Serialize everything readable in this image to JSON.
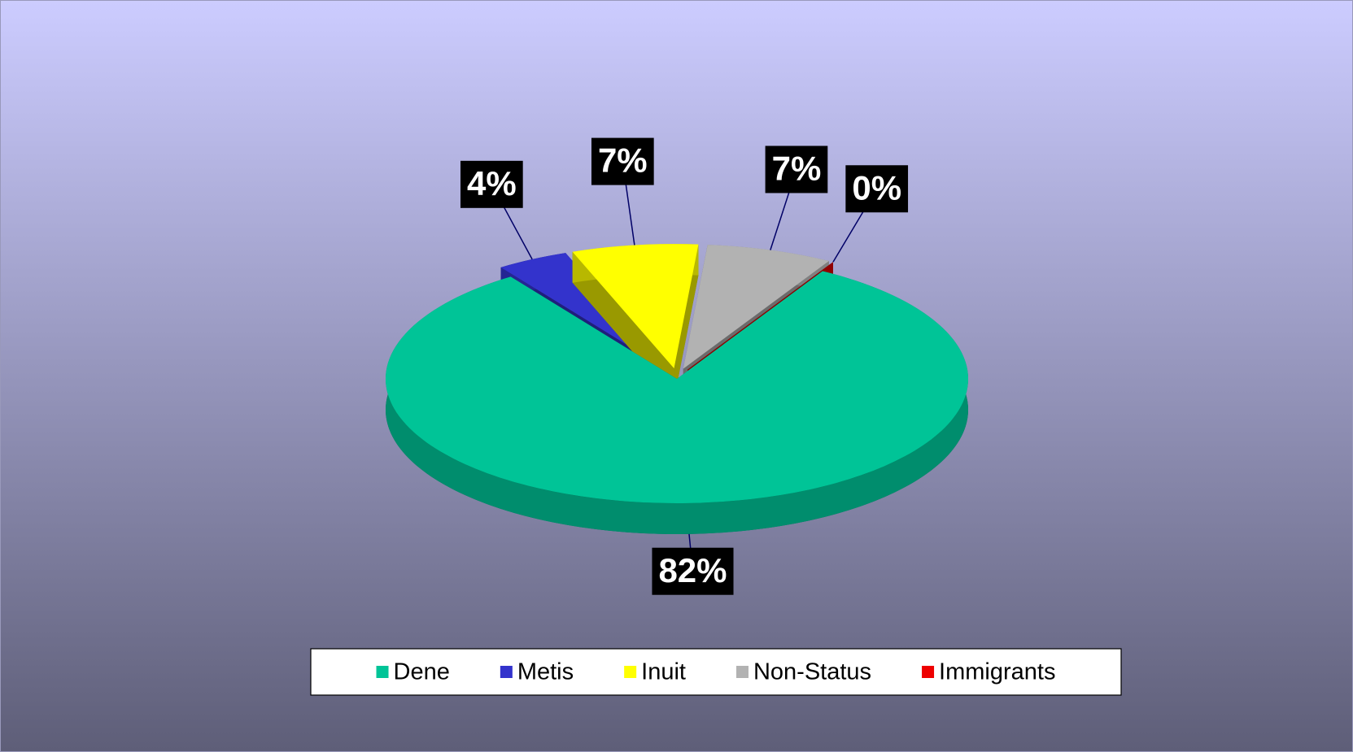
{
  "chart_data": {
    "type": "pie",
    "categories": [
      "Dene",
      "Metis",
      "Inuit",
      "Non-Status",
      "Immigrants"
    ],
    "values": [
      82,
      4,
      7,
      7,
      0
    ],
    "value_labels": [
      "82%",
      "4%",
      "7%",
      "7%",
      "0%"
    ],
    "colors": [
      "#00c497",
      "#3333cc",
      "#ffff00",
      "#b2b2b2",
      "#ee0000"
    ],
    "legend": "bottom"
  }
}
